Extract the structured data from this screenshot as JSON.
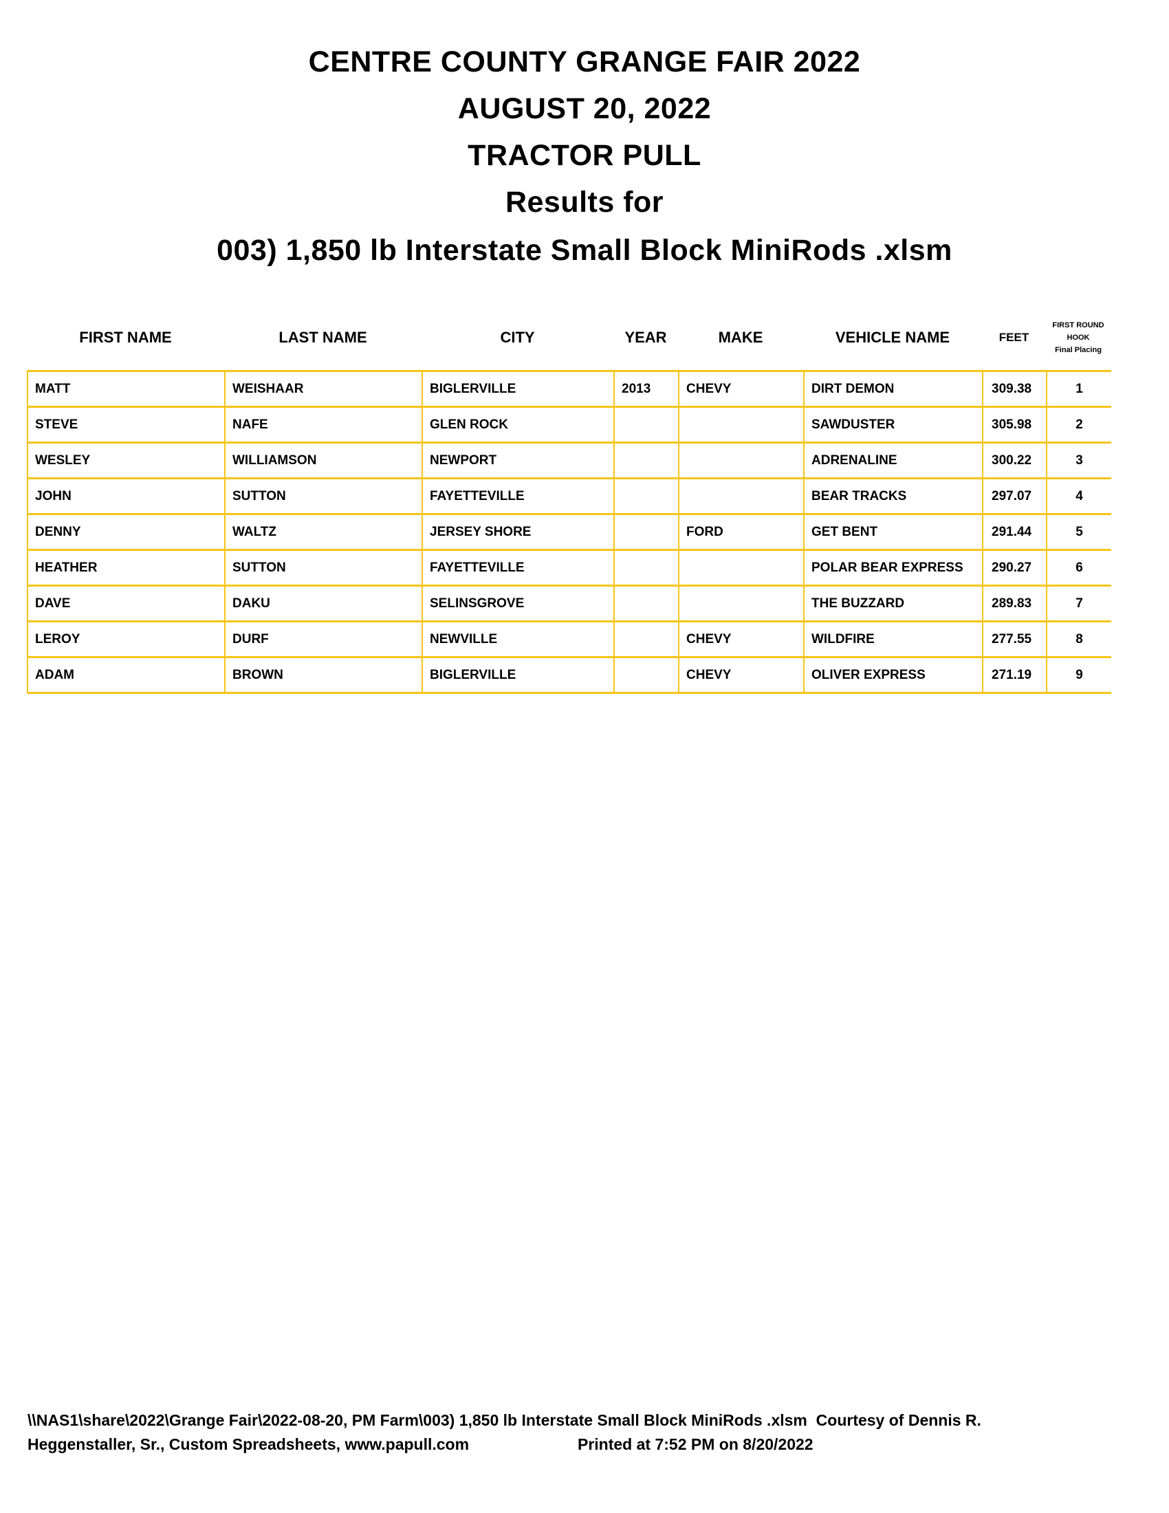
{
  "titles": [
    "CENTRE COUNTY GRANGE FAIR 2022",
    "AUGUST 20, 2022",
    "TRACTOR PULL",
    "Results for",
    "003) 1,850 lb Interstate Small Block MiniRods .xlsm"
  ],
  "columns": [
    "FIRST NAME",
    "LAST NAME",
    "CITY",
    "YEAR",
    "MAKE",
    "VEHICLE NAME",
    "FEET"
  ],
  "placing_header": [
    "FIRST ROUND",
    "HOOK",
    "Final Placing"
  ],
  "rows": [
    [
      "MATT",
      "WEISHAAR",
      "BIGLERVILLE",
      "2013",
      "CHEVY",
      "DIRT DEMON",
      "309.38",
      "1"
    ],
    [
      "STEVE",
      "NAFE",
      "GLEN ROCK",
      "",
      "",
      "SAWDUSTER",
      "305.98",
      "2"
    ],
    [
      "WESLEY",
      "WILLIAMSON",
      "NEWPORT",
      "",
      "",
      "ADRENALINE",
      "300.22",
      "3"
    ],
    [
      "JOHN",
      "SUTTON",
      "FAYETTEVILLE",
      "",
      "",
      "BEAR TRACKS",
      "297.07",
      "4"
    ],
    [
      "DENNY",
      "WALTZ",
      "JERSEY SHORE",
      "",
      "FORD",
      "GET BENT",
      "291.44",
      "5"
    ],
    [
      "HEATHER",
      "SUTTON",
      "FAYETTEVILLE",
      "",
      "",
      "POLAR BEAR EXPRESS",
      "290.27",
      "6"
    ],
    [
      "DAVE",
      "DAKU",
      "SELINSGROVE",
      "",
      "",
      "THE BUZZARD",
      "289.83",
      "7"
    ],
    [
      "LEROY",
      "DURF",
      "NEWVILLE",
      "",
      "CHEVY",
      "WILDFIRE",
      "277.55",
      "8"
    ],
    [
      "ADAM",
      "BROWN",
      "BIGLERVILLE",
      "",
      "CHEVY",
      "OLIVER EXPRESS",
      "271.19",
      "9"
    ]
  ],
  "footer": {
    "line1": "\\\\NAS1\\share\\2022\\Grange Fair\\2022-08-20, PM Farm\\003) 1,850 lb Interstate Small Block MiniRods .xlsm  Courtesy of Dennis R.",
    "line2": "Heggenstaller, Sr., Custom Spreadsheets, www.papull.com",
    "printed": "Printed at 7:52 PM on 8/20/2022"
  },
  "colors": {
    "border": "#f5c518"
  }
}
